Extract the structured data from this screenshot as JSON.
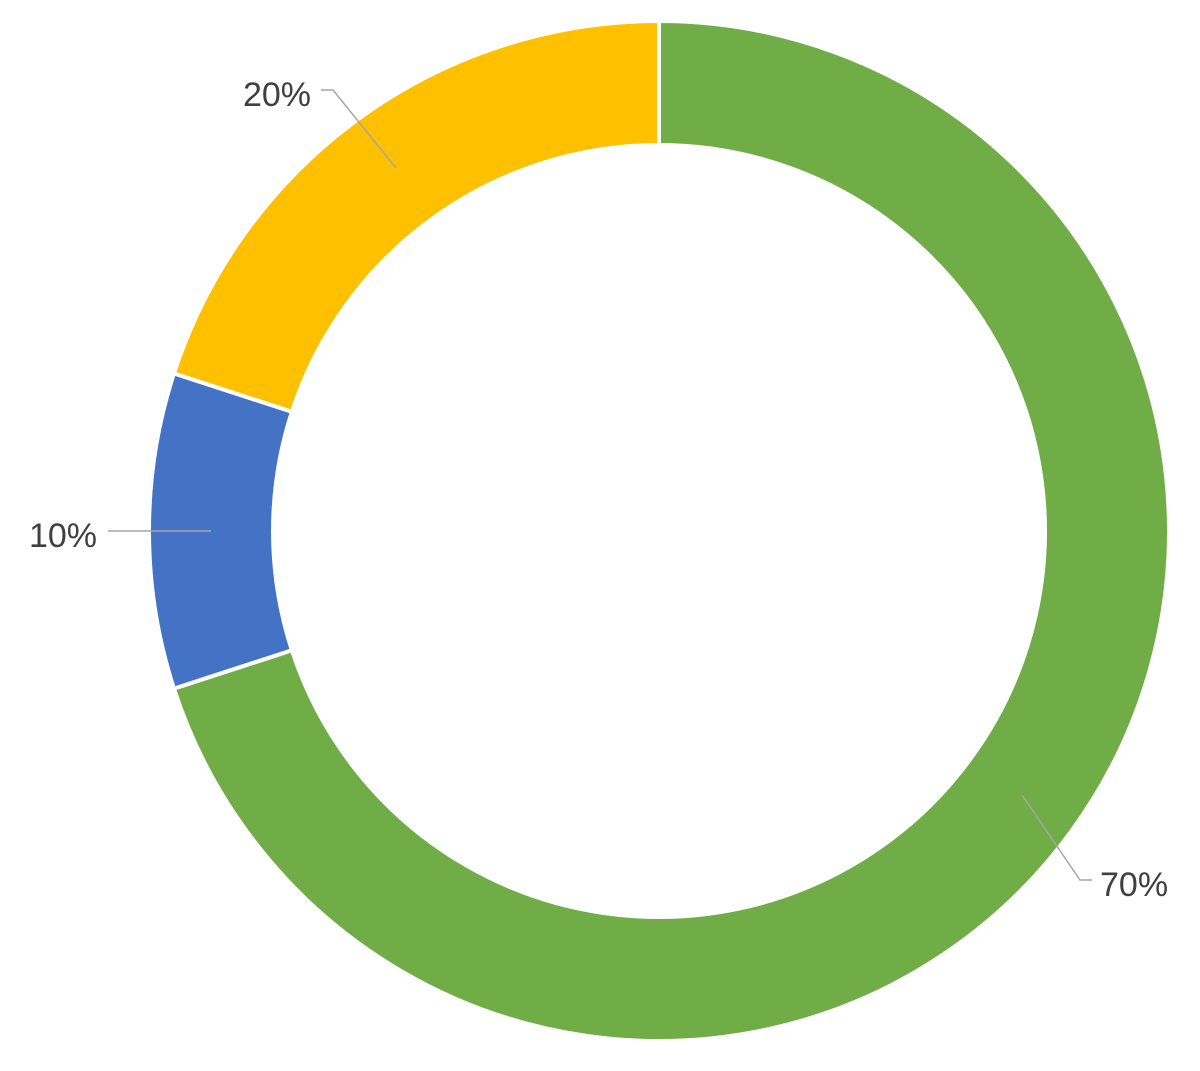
{
  "chart_data": {
    "type": "pie",
    "variant": "donut",
    "title": "",
    "slices": [
      {
        "value": 70,
        "label": "70%",
        "color": "#70AD47"
      },
      {
        "value": 10,
        "label": "10%",
        "color": "#4472C4"
      },
      {
        "value": 20,
        "label": "20%",
        "color": "#FFC000"
      }
    ],
    "start_angle_degrees": 0,
    "direction": "clockwise",
    "legend": "none",
    "leader_line_color": "#A6A6A6",
    "label_color": "#404040",
    "separator_color": "#FFFFFF"
  }
}
